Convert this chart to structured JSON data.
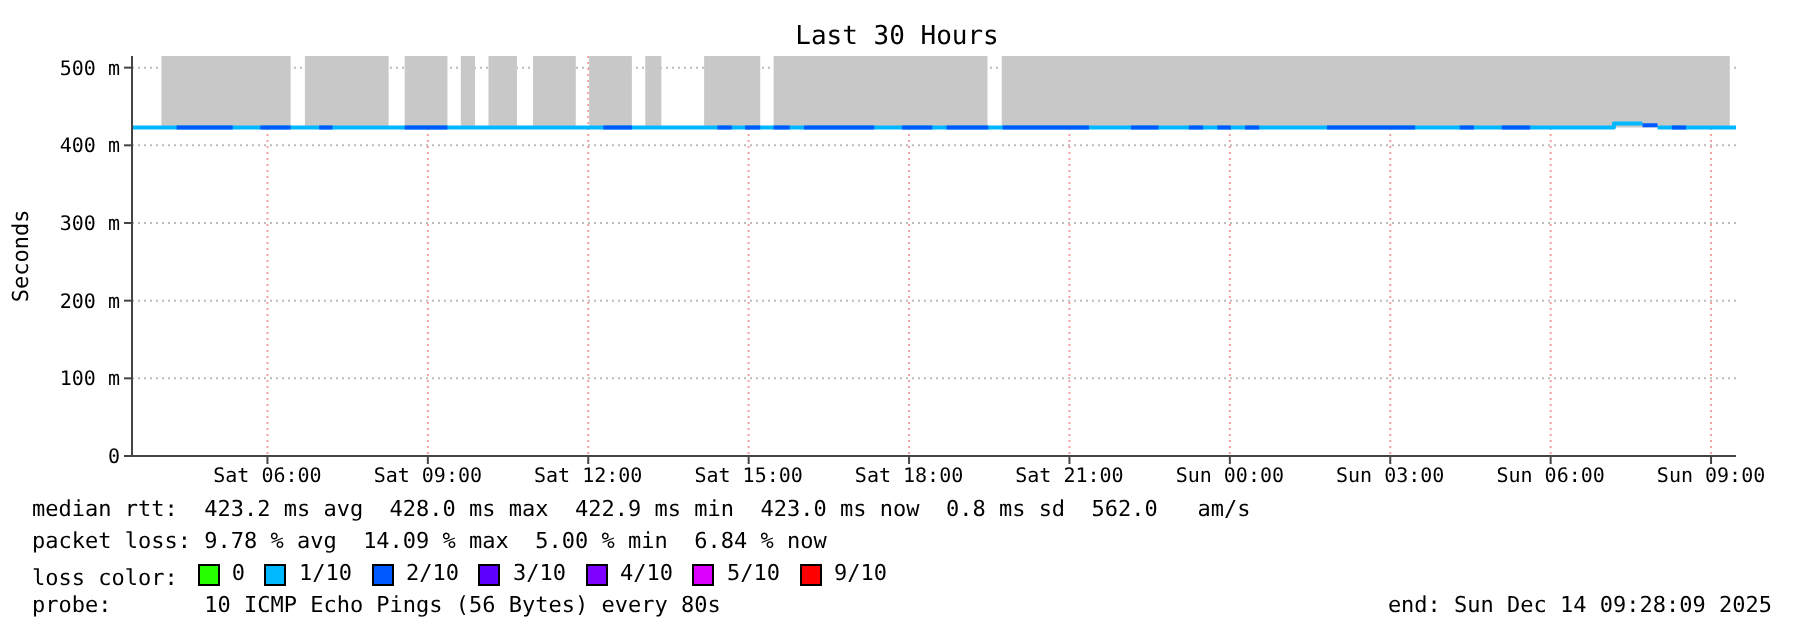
{
  "chart_data": {
    "type": "line",
    "title": "Last 30 Hours",
    "ylabel": "Seconds",
    "xlim": [
      "2025-12-13T03:28",
      "2025-12-14T09:28"
    ],
    "xticks": [
      {
        "value": "2025-12-13T06:00",
        "label": "Sat 06:00"
      },
      {
        "value": "2025-12-13T09:00",
        "label": "Sat 09:00"
      },
      {
        "value": "2025-12-13T12:00",
        "label": "Sat 12:00"
      },
      {
        "value": "2025-12-13T15:00",
        "label": "Sat 15:00"
      },
      {
        "value": "2025-12-13T18:00",
        "label": "Sat 18:00"
      },
      {
        "value": "2025-12-13T21:00",
        "label": "Sat 21:00"
      },
      {
        "value": "2025-12-14T00:00",
        "label": "Sun 00:00"
      },
      {
        "value": "2025-12-14T03:00",
        "label": "Sun 03:00"
      },
      {
        "value": "2025-12-14T06:00",
        "label": "Sun 06:00"
      },
      {
        "value": "2025-12-14T09:00",
        "label": "Sun 09:00"
      }
    ],
    "ylim": [
      0,
      515
    ],
    "yticks": [
      0,
      {
        "value": 100,
        "label": "100 m"
      },
      {
        "value": 200,
        "label": "200 m"
      },
      {
        "value": 300,
        "label": "300 m"
      },
      {
        "value": 400,
        "label": "400 m"
      },
      {
        "value": 500,
        "label": "500 m"
      }
    ],
    "grid": true,
    "legend": "bottom",
    "legend_title": "loss color:",
    "line_style": "solid",
    "series": [
      {
        "name": "0",
        "color": "#26ff00"
      },
      {
        "name": "1/10",
        "color": "#00b8ff",
        "x": [
          "2025-12-13T03:28",
          "2025-12-14T07:11",
          "2025-12-14T07:11",
          "2025-12-14T07:43",
          "2025-12-14T07:51",
          "2025-12-14T08:00",
          "2025-12-14T09:28"
        ],
        "values": [
          423,
          423,
          428,
          428,
          null,
          423,
          423
        ]
      },
      {
        "name": "2/10",
        "color": "#0059ff",
        "x": [
          "2025-12-13T04:18",
          "2025-12-13T05:21",
          "2025-12-13T05:36",
          "2025-12-13T05:52",
          "2025-12-13T06:26",
          "2025-12-13T06:42",
          "2025-12-13T06:58",
          "2025-12-13T07:13",
          "2025-12-13T07:54",
          "2025-12-13T08:34",
          "2025-12-13T09:22",
          "2025-12-13T10:48",
          "2025-12-13T12:17",
          "2025-12-13T12:49",
          "2025-12-13T13:36",
          "2025-12-13T14:25",
          "2025-12-13T14:41",
          "2025-12-13T14:48",
          "2025-12-13T14:56",
          "2025-12-13T15:13",
          "2025-12-13T15:18",
          "2025-12-13T15:28",
          "2025-12-13T15:46",
          "2025-12-13T15:54",
          "2025-12-13T16:02",
          "2025-12-13T17:21",
          "2025-12-13T17:36",
          "2025-12-13T17:52",
          "2025-12-13T18:26",
          "2025-12-13T18:33",
          "2025-12-13T18:42",
          "2025-12-13T19:29",
          "2025-12-13T19:36",
          "2025-12-13T19:45",
          "2025-12-13T21:22",
          "2025-12-13T21:48",
          "2025-12-13T22:09",
          "2025-12-13T22:40",
          "2025-12-13T22:54",
          "2025-12-13T23:14",
          "2025-12-13T23:30",
          "2025-12-13T23:36",
          "2025-12-13T23:46",
          "2025-12-14T00:01",
          "2025-12-14T00:09",
          "2025-12-14T00:17",
          "2025-12-14T00:33",
          "2025-12-14T01:12",
          "2025-12-14T01:49",
          "2025-12-14T03:28",
          "2025-12-14T03:54",
          "2025-12-14T04:18",
          "2025-12-14T04:34",
          "2025-12-14T04:48",
          "2025-12-14T05:05",
          "2025-12-14T05:37",
          "2025-12-14T06:36",
          "2025-12-14T07:43",
          "2025-12-14T08:00",
          "2025-12-14T08:06",
          "2025-12-14T08:16",
          "2025-12-14T08:32"
        ],
        "values": [
          423,
          423,
          null,
          423,
          423,
          null,
          423,
          423,
          null,
          423,
          423,
          null,
          423,
          423,
          null,
          423,
          423,
          null,
          423,
          423,
          null,
          423,
          423,
          null,
          423,
          423,
          null,
          423,
          423,
          null,
          423,
          423,
          null,
          423,
          423,
          null,
          423,
          423,
          null,
          423,
          423,
          null,
          423,
          423,
          null,
          423,
          423,
          null,
          423,
          423,
          null,
          423,
          423,
          null,
          423,
          423,
          null,
          426,
          426,
          null,
          423,
          423
        ]
      },
      {
        "name": "3/10",
        "color": "#5e00ff"
      },
      {
        "name": "4/10",
        "color": "#7e00ff"
      },
      {
        "name": "5/10",
        "color": "#dd00ff"
      },
      {
        "name": "9/10",
        "color": "#ff0000"
      }
    ],
    "bands": [
      {
        "axis": "x",
        "from": "2025-12-13T04:01",
        "to": "2025-12-13T06:26",
        "color": "#c8c8c8"
      },
      {
        "axis": "x",
        "from": "2025-12-13T06:42",
        "to": "2025-12-13T08:16",
        "color": "#c8c8c8"
      },
      {
        "axis": "x",
        "from": "2025-12-13T08:34",
        "to": "2025-12-13T09:22",
        "color": "#c8c8c8"
      },
      {
        "axis": "x",
        "from": "2025-12-13T09:37",
        "to": "2025-12-13T09:53",
        "color": "#c8c8c8"
      },
      {
        "axis": "x",
        "from": "2025-12-13T10:08",
        "to": "2025-12-13T10:40",
        "color": "#c8c8c8"
      },
      {
        "axis": "x",
        "from": "2025-12-13T10:58",
        "to": "2025-12-13T11:46",
        "color": "#c8c8c8"
      },
      {
        "axis": "x",
        "from": "2025-12-13T12:01",
        "to": "2025-12-13T12:49",
        "color": "#c8c8c8"
      },
      {
        "axis": "x",
        "from": "2025-12-13T13:04",
        "to": "2025-12-13T13:22",
        "color": "#c8c8c8"
      },
      {
        "axis": "x",
        "from": "2025-12-13T14:10",
        "to": "2025-12-13T15:13",
        "color": "#c8c8c8"
      },
      {
        "axis": "x",
        "from": "2025-12-13T15:28",
        "to": "2025-12-13T19:28",
        "color": "#c8c8c8"
      },
      {
        "axis": "x",
        "from": "2025-12-13T19:44",
        "to": "2025-12-14T09:21",
        "color": "#c8c8c8"
      }
    ],
    "annotations": [
      "median rtt:  423.2 ms avg  428.0 ms max  422.9 ms min  423.0 ms now  0.8 ms sd  562.0   am/s",
      "packet loss: 9.78 % avg  14.09 % max  5.00 % min  6.84 % now",
      "probe:       10 ICMP Echo Pings (56 Bytes) every 80s",
      "end: Sun Dec 14 09:28:09 2025"
    ]
  }
}
